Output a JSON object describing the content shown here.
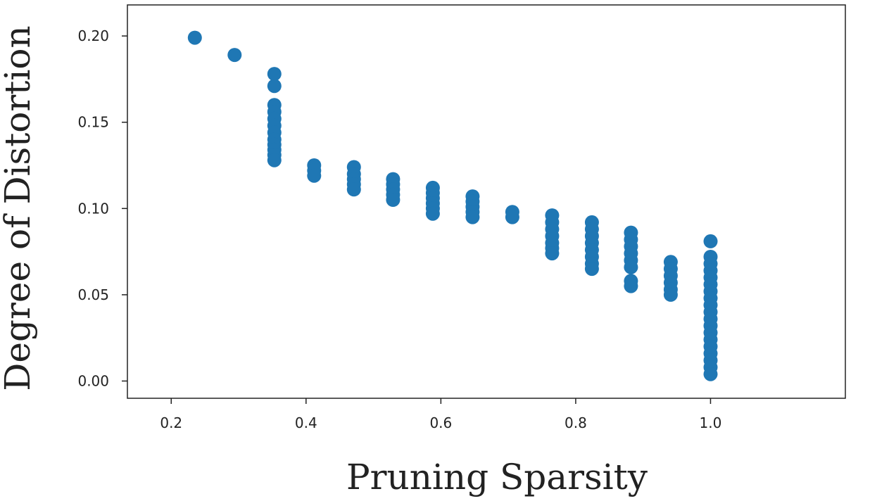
{
  "chart_data": {
    "type": "scatter",
    "title": "",
    "xlabel": "Pruning Sparsity",
    "ylabel": "Degree of Distortion",
    "xlim": [
      0.135,
      1.2
    ],
    "ylim": [
      -0.01,
      0.218
    ],
    "grid": false,
    "xticks": [
      {
        "value": 0.2,
        "label": "0.2"
      },
      {
        "value": 0.4,
        "label": "0.4"
      },
      {
        "value": 0.6,
        "label": "0.6"
      },
      {
        "value": 0.8,
        "label": "0.8"
      },
      {
        "value": 1.0,
        "label": "1.0"
      }
    ],
    "yticks": [
      {
        "value": 0.0,
        "label": "0.00"
      },
      {
        "value": 0.05,
        "label": "0.05"
      },
      {
        "value": 0.1,
        "label": "0.10"
      },
      {
        "value": 0.15,
        "label": "0.15"
      },
      {
        "value": 0.2,
        "label": "0.20"
      }
    ],
    "series": [
      {
        "color": "#1f77b4",
        "points": [
          [
            0.235,
            0.199
          ],
          [
            0.294,
            0.189
          ],
          [
            0.353,
            0.178
          ],
          [
            0.353,
            0.171
          ],
          [
            0.353,
            0.16
          ],
          [
            0.353,
            0.156
          ],
          [
            0.353,
            0.152
          ],
          [
            0.353,
            0.148
          ],
          [
            0.353,
            0.144
          ],
          [
            0.353,
            0.14
          ],
          [
            0.353,
            0.137
          ],
          [
            0.353,
            0.134
          ],
          [
            0.353,
            0.131
          ],
          [
            0.353,
            0.128
          ],
          [
            0.412,
            0.125
          ],
          [
            0.412,
            0.122
          ],
          [
            0.412,
            0.119
          ],
          [
            0.471,
            0.124
          ],
          [
            0.471,
            0.12
          ],
          [
            0.471,
            0.117
          ],
          [
            0.471,
            0.114
          ],
          [
            0.471,
            0.111
          ],
          [
            0.529,
            0.117
          ],
          [
            0.529,
            0.114
          ],
          [
            0.529,
            0.111
          ],
          [
            0.529,
            0.108
          ],
          [
            0.529,
            0.105
          ],
          [
            0.588,
            0.112
          ],
          [
            0.588,
            0.109
          ],
          [
            0.588,
            0.106
          ],
          [
            0.588,
            0.103
          ],
          [
            0.588,
            0.1
          ],
          [
            0.588,
            0.097
          ],
          [
            0.647,
            0.107
          ],
          [
            0.647,
            0.104
          ],
          [
            0.647,
            0.101
          ],
          [
            0.647,
            0.098
          ],
          [
            0.647,
            0.095
          ],
          [
            0.706,
            0.098
          ],
          [
            0.706,
            0.095
          ],
          [
            0.765,
            0.096
          ],
          [
            0.765,
            0.092
          ],
          [
            0.765,
            0.088
          ],
          [
            0.765,
            0.084
          ],
          [
            0.765,
            0.08
          ],
          [
            0.765,
            0.077
          ],
          [
            0.765,
            0.074
          ],
          [
            0.824,
            0.092
          ],
          [
            0.824,
            0.088
          ],
          [
            0.824,
            0.084
          ],
          [
            0.824,
            0.08
          ],
          [
            0.824,
            0.076
          ],
          [
            0.824,
            0.072
          ],
          [
            0.824,
            0.068
          ],
          [
            0.824,
            0.065
          ],
          [
            0.882,
            0.086
          ],
          [
            0.882,
            0.082
          ],
          [
            0.882,
            0.078
          ],
          [
            0.882,
            0.074
          ],
          [
            0.882,
            0.07
          ],
          [
            0.882,
            0.066
          ],
          [
            0.882,
            0.058
          ],
          [
            0.882,
            0.055
          ],
          [
            0.941,
            0.069
          ],
          [
            0.941,
            0.065
          ],
          [
            0.941,
            0.061
          ],
          [
            0.941,
            0.057
          ],
          [
            0.941,
            0.053
          ],
          [
            0.941,
            0.05
          ],
          [
            1.0,
            0.081
          ],
          [
            1.0,
            0.072
          ],
          [
            1.0,
            0.068
          ],
          [
            1.0,
            0.064
          ],
          [
            1.0,
            0.06
          ],
          [
            1.0,
            0.056
          ],
          [
            1.0,
            0.052
          ],
          [
            1.0,
            0.048
          ],
          [
            1.0,
            0.044
          ],
          [
            1.0,
            0.04
          ],
          [
            1.0,
            0.036
          ],
          [
            1.0,
            0.032
          ],
          [
            1.0,
            0.028
          ],
          [
            1.0,
            0.024
          ],
          [
            1.0,
            0.02
          ],
          [
            1.0,
            0.016
          ],
          [
            1.0,
            0.012
          ],
          [
            1.0,
            0.008
          ],
          [
            1.0,
            0.004
          ]
        ]
      }
    ]
  }
}
